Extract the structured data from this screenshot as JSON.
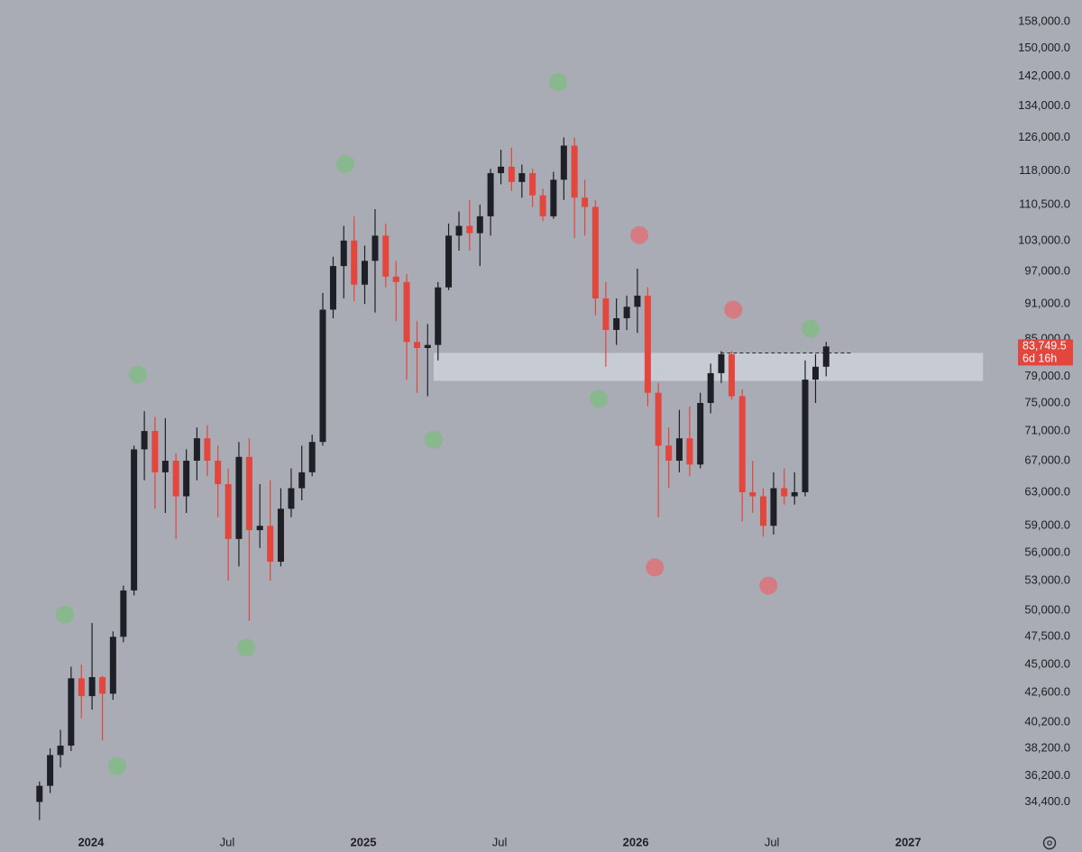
{
  "chart_data": {
    "type": "candlestick",
    "x": [
      2023.811,
      2023.85,
      2023.888,
      2023.927,
      2023.965,
      2024.004,
      2024.042,
      2024.081,
      2024.119,
      2024.158,
      2024.196,
      2024.235,
      2024.273,
      2024.312,
      2024.35,
      2024.389,
      2024.427,
      2024.466,
      2024.504,
      2024.543,
      2024.581,
      2024.62,
      2024.658,
      2024.697,
      2024.735,
      2024.774,
      2024.812,
      2024.851,
      2024.889,
      2024.928,
      2024.966,
      2025.005,
      2025.043,
      2025.082,
      2025.12,
      2025.159,
      2025.197,
      2025.236,
      2025.274,
      2025.313,
      2025.351,
      2025.39,
      2025.428,
      2025.467,
      2025.505,
      2025.544,
      2025.582,
      2025.621,
      2025.659,
      2025.698,
      2025.736,
      2025.775,
      2025.813,
      2025.852,
      2025.89,
      2025.929,
      2025.967,
      2026.006,
      2026.044,
      2026.083,
      2026.121,
      2026.16,
      2026.198,
      2026.237,
      2026.275,
      2026.314,
      2026.352,
      2026.391,
      2026.429,
      2026.468,
      2026.506,
      2026.545,
      2026.583,
      2026.622,
      2026.66,
      2026.699
    ],
    "open": [
      34400,
      35500,
      37700,
      38400,
      43800,
      42300,
      43900,
      42500,
      47500,
      52000,
      68500,
      71000,
      65500,
      67000,
      62500,
      67000,
      70000,
      67000,
      64000,
      57500,
      67500,
      58500,
      59000,
      55000,
      61000,
      63500,
      65500,
      69500,
      90000,
      98000,
      103000,
      94500,
      99000,
      104000,
      96000,
      95000,
      84500,
      83500,
      84000,
      94000,
      104000,
      106000,
      104500,
      108000,
      117500,
      119000,
      115500,
      117500,
      112500,
      108000,
      116000,
      124000,
      112000,
      110000,
      92000,
      86500,
      88500,
      90500,
      92500,
      76500,
      69000,
      67000,
      70000,
      66500,
      75000,
      79500,
      82500,
      76000,
      63000,
      62500,
      59000,
      63500,
      62500,
      63000,
      78500,
      80500
    ],
    "high": [
      35800,
      38200,
      39600,
      44800,
      45000,
      48800,
      44000,
      48000,
      52500,
      69000,
      73800,
      73000,
      72800,
      68000,
      68500,
      71500,
      71800,
      69000,
      66000,
      69500,
      70000,
      64000,
      64500,
      63500,
      66000,
      69000,
      70500,
      93000,
      99800,
      106000,
      108000,
      102000,
      109500,
      106500,
      99000,
      96500,
      88000,
      87500,
      95000,
      106500,
      109000,
      111500,
      110500,
      118500,
      123000,
      123500,
      119500,
      118500,
      114000,
      117800,
      126000,
      126000,
      116000,
      111500,
      95000,
      92000,
      92500,
      97500,
      94000,
      78000,
      71500,
      74000,
      74500,
      76500,
      81000,
      83000,
      83000,
      77000,
      67000,
      63500,
      65500,
      66000,
      65500,
      81500,
      82500,
      84500
    ],
    "low": [
      33200,
      35000,
      36800,
      38000,
      40500,
      41200,
      38800,
      42000,
      47000,
      51500,
      64500,
      61000,
      60500,
      57500,
      60500,
      64500,
      65000,
      60000,
      53000,
      54500,
      49000,
      56500,
      53000,
      54500,
      60000,
      62000,
      65000,
      69000,
      88500,
      92000,
      91500,
      91000,
      89500,
      94000,
      88000,
      78500,
      76500,
      76000,
      81500,
      93500,
      101000,
      101000,
      98000,
      104000,
      115000,
      113500,
      112000,
      110000,
      107000,
      107500,
      111500,
      103500,
      104000,
      89000,
      80500,
      84000,
      86500,
      86000,
      74500,
      60000,
      63500,
      65500,
      65000,
      66000,
      73500,
      78000,
      75500,
      59500,
      60500,
      57800,
      58000,
      61500,
      61500,
      62500,
      75000,
      79000
    ],
    "close": [
      35500,
      37700,
      38400,
      43800,
      42300,
      43900,
      42500,
      47500,
      52000,
      68500,
      71000,
      65500,
      67000,
      62500,
      67000,
      70000,
      67000,
      64000,
      57500,
      67500,
      58500,
      59000,
      55000,
      61000,
      63500,
      65500,
      69500,
      90000,
      98000,
      103000,
      94500,
      99000,
      104000,
      96000,
      95000,
      84500,
      83500,
      84000,
      94000,
      104000,
      106000,
      104500,
      108000,
      117500,
      119000,
      115500,
      117500,
      112500,
      108000,
      116000,
      124000,
      112000,
      110000,
      92000,
      86500,
      88500,
      90500,
      92500,
      76500,
      69000,
      67000,
      70000,
      66500,
      75000,
      79500,
      82500,
      76000,
      63000,
      62500,
      59000,
      63500,
      62500,
      63000,
      78500,
      80500,
      83749.5
    ],
    "up_color": "#1f2027",
    "down_color": "#e2463c",
    "xlim": [
      2023.666,
      2027.39
    ],
    "xticks": [
      2024,
      {
        "value": 2024.5,
        "label": "Jul"
      },
      2025,
      {
        "value": 2025.5,
        "label": "Jul"
      },
      2026,
      {
        "value": 2026.5,
        "label": "Jul"
      },
      2027
    ],
    "ylim": [
      32600,
      164800
    ],
    "log_scale": true,
    "grid": false,
    "yticks": [
      {
        "value": 158000,
        "label": "158,000.0"
      },
      {
        "value": 150000,
        "label": "150,000.0"
      },
      {
        "value": 142000,
        "label": "142,000.0"
      },
      {
        "value": 134000,
        "label": "134,000.0"
      },
      {
        "value": 126000,
        "label": "126,000.0"
      },
      {
        "value": 118000,
        "label": "118,000.0"
      },
      {
        "value": 110500,
        "label": "110,500.0"
      },
      {
        "value": 103000,
        "label": "103,000.0"
      },
      {
        "value": 97000,
        "label": "97,000.0"
      },
      {
        "value": 91000,
        "label": "91,000.0"
      },
      {
        "value": 85000,
        "label": "85,000.0"
      },
      {
        "value": 79000,
        "label": "79,000.0"
      },
      {
        "value": 75000,
        "label": "75,000.0"
      },
      {
        "value": 71000,
        "label": "71,000.0"
      },
      {
        "value": 67000,
        "label": "67,000.0"
      },
      {
        "value": 63000,
        "label": "63,000.0"
      },
      {
        "value": 59000,
        "label": "59,000.0"
      },
      {
        "value": 56000,
        "label": "56,000.0"
      },
      {
        "value": 53000,
        "label": "53,000.0"
      },
      {
        "value": 50000,
        "label": "50,000.0"
      },
      {
        "value": 47500,
        "label": "47,500.0"
      },
      {
        "value": 45000,
        "label": "45,000.0"
      },
      {
        "value": 42600,
        "label": "42,600.0"
      },
      {
        "value": 40200,
        "label": "40,200.0"
      },
      {
        "value": 38200,
        "label": "38,200.0"
      },
      {
        "value": 36200,
        "label": "36,200.0"
      },
      {
        "value": 34400,
        "label": "34,400.0"
      }
    ],
    "zone": {
      "x": [
        2025.258,
        2027.275
      ],
      "y": [
        78300,
        82700
      ],
      "color": "#cdd0d8"
    },
    "level_line": {
      "x": [
        2026.312,
        2026.795
      ],
      "value": 82700,
      "color": "#2a2a30"
    },
    "markers": [
      {
        "x": 2023.904,
        "y": 49600,
        "color": "#85b98a"
      },
      {
        "x": 2024.096,
        "y": 36900,
        "color": "#85b98a"
      },
      {
        "x": 2024.172,
        "y": 79300,
        "color": "#85b98a"
      },
      {
        "x": 2024.57,
        "y": 46500,
        "color": "#85b98a"
      },
      {
        "x": 2024.934,
        "y": 119600,
        "color": "#85b98a"
      },
      {
        "x": 2025.258,
        "y": 69800,
        "color": "#85b98a"
      },
      {
        "x": 2025.715,
        "y": 140400,
        "color": "#85b98a"
      },
      {
        "x": 2025.864,
        "y": 75600,
        "color": "#85b98a"
      },
      {
        "x": 2026.013,
        "y": 104100,
        "color": "#d8777b"
      },
      {
        "x": 2026.07,
        "y": 54400,
        "color": "#d8777b"
      },
      {
        "x": 2026.358,
        "y": 90000,
        "color": "#d8777b"
      },
      {
        "x": 2026.487,
        "y": 52500,
        "color": "#d8777b"
      },
      {
        "x": 2026.642,
        "y": 86700,
        "color": "#85b98a"
      }
    ],
    "last_price": {
      "value": 83749.5,
      "label": "83,749.5",
      "countdown": "6d 16h",
      "color": "#e2463c"
    }
  }
}
